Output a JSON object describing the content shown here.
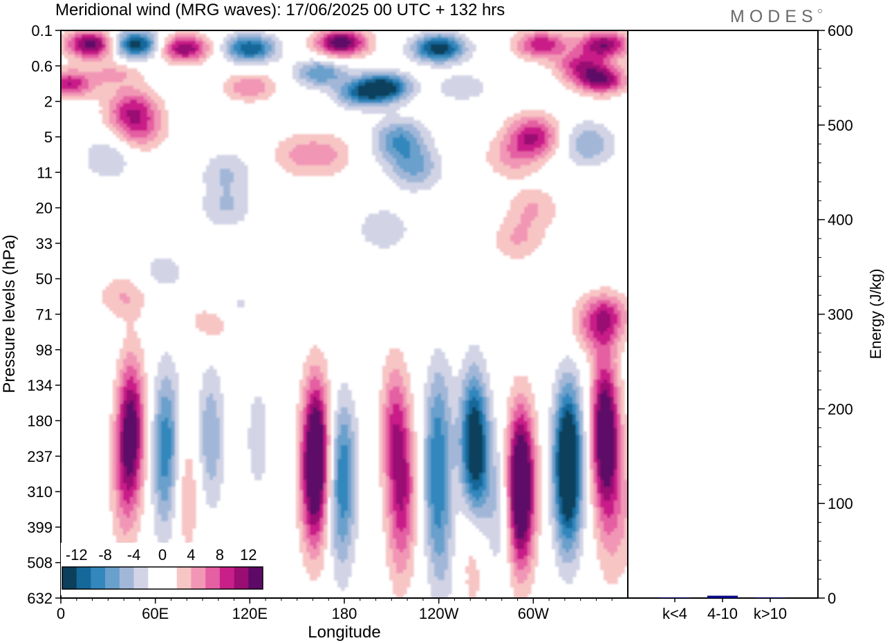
{
  "title": "Meridional wind (MRG waves):  17/06/2025  00 UTC  + 132 hrs",
  "logo": "MODES",
  "chart_data": [
    {
      "type": "heatmap",
      "xlabel": "Longitude",
      "ylabel": "Pressure levels (hPa)",
      "x_ticks": [
        "0",
        "60E",
        "120E",
        "180",
        "120W",
        "60W"
      ],
      "x_tick_values": [
        0,
        60,
        120,
        180,
        240,
        300
      ],
      "xlim": [
        0,
        360
      ],
      "y_ticks": [
        "0.1",
        "0.6",
        "2",
        "5",
        "11",
        "20",
        "33",
        "50",
        "71",
        "98",
        "134",
        "180",
        "237",
        "310",
        "399",
        "508",
        "632"
      ],
      "y_scale": "level-index",
      "colorbar": {
        "labels": [
          "-12",
          "-8",
          "-4",
          "0",
          "4",
          "8",
          "12"
        ],
        "label_values": [
          -12,
          -8,
          -4,
          0,
          4,
          8,
          12
        ],
        "bounds": [
          -14,
          14
        ],
        "colors": [
          "#0b3f5c",
          "#15689a",
          "#3387bd",
          "#6aa0cc",
          "#a2b7d8",
          "#d2d4e6",
          "#ffffff",
          "#ffffff",
          "#f8c5c5",
          "#f197b5",
          "#e55fa3",
          "#c91f88",
          "#9a0d73",
          "#5d0a67"
        ]
      },
      "features": [
        {
          "lon": 20,
          "lev": 0.4,
          "value": 14
        },
        {
          "lon": 47,
          "lev": 0.4,
          "value": -14
        },
        {
          "lon": 78,
          "lev": 0.5,
          "value": 12
        },
        {
          "lon": 120,
          "lev": 0.5,
          "value": -12
        },
        {
          "lon": 178,
          "lev": 0.35,
          "value": 14
        },
        {
          "lon": 240,
          "lev": 0.5,
          "value": -14
        },
        {
          "lon": 305,
          "lev": 0.4,
          "value": 10
        },
        {
          "lon": 345,
          "lev": 0.4,
          "value": 12
        },
        {
          "lon": 343,
          "lev": 1.4,
          "value": 12
        },
        {
          "lon": 5,
          "lev": 1.5,
          "value": 10
        },
        {
          "lon": 35,
          "lev": 1.2,
          "value": 4
        },
        {
          "lon": 165,
          "lev": 1.2,
          "value": -8
        },
        {
          "lon": 205,
          "lev": 1.6,
          "value": -14
        },
        {
          "lon": 190,
          "lev": 1.8,
          "value": -8
        },
        {
          "lon": 255,
          "lev": 1.6,
          "value": -4
        },
        {
          "lon": 120,
          "lev": 1.6,
          "value": 6
        },
        {
          "lon": 330,
          "lev": 1.0,
          "value": 8
        },
        {
          "lon": 45,
          "lev": 2.2,
          "value": 8
        },
        {
          "lon": 50,
          "lev": 2.8,
          "value": 6
        },
        {
          "lon": 215,
          "lev": 3.1,
          "value": -8
        },
        {
          "lon": 225,
          "lev": 3.9,
          "value": -6
        },
        {
          "lon": 300,
          "lev": 3.0,
          "value": 10
        },
        {
          "lon": 285,
          "lev": 3.6,
          "value": 4
        },
        {
          "lon": 335,
          "lev": 3.2,
          "value": -6
        },
        {
          "lon": 150,
          "lev": 3.5,
          "value": 4
        },
        {
          "lon": 170,
          "lev": 3.5,
          "value": 4
        },
        {
          "lon": 105,
          "lev": 4.0,
          "value": -4
        },
        {
          "lon": 30,
          "lev": 3.6,
          "value": -4
        },
        {
          "lon": 105,
          "lev": 5.0,
          "value": -4
        },
        {
          "lon": 300,
          "lev": 5.0,
          "value": 4
        },
        {
          "lon": 205,
          "lev": 5.6,
          "value": -4
        },
        {
          "lon": 65,
          "lev": 6.8,
          "value": -3
        },
        {
          "lon": 40,
          "lev": 7.5,
          "value": 4
        },
        {
          "lon": 290,
          "lev": 5.9,
          "value": 4
        },
        {
          "lon": 97,
          "lev": 8.2,
          "value": 4
        },
        {
          "lon": 110,
          "lev": 7.8,
          "value": -3
        },
        {
          "lon": 345,
          "lev": 8.0,
          "value": 8
        },
        {
          "lon": 340,
          "lev": 8.6,
          "value": 4
        },
        {
          "lon": 45,
          "lev": 11.0,
          "value": 8
        },
        {
          "lon": 44,
          "lev": 11.6,
          "value": 6
        },
        {
          "lon": 40,
          "lev": 13.0,
          "value": 4
        },
        {
          "lon": 67,
          "lev": 11.3,
          "value": -7
        },
        {
          "lon": 66,
          "lev": 12.8,
          "value": -4
        },
        {
          "lon": 95,
          "lev": 11.5,
          "value": -6
        },
        {
          "lon": 125,
          "lev": 11.5,
          "value": -3
        },
        {
          "lon": 80,
          "lev": 13.0,
          "value": 4
        },
        {
          "lon": 162,
          "lev": 11.5,
          "value": 12
        },
        {
          "lon": 161,
          "lev": 13.0,
          "value": 10
        },
        {
          "lon": 179,
          "lev": 12.2,
          "value": -8
        },
        {
          "lon": 178,
          "lev": 14.0,
          "value": -4
        },
        {
          "lon": 212,
          "lev": 11.2,
          "value": 8
        },
        {
          "lon": 218,
          "lev": 12.8,
          "value": 6
        },
        {
          "lon": 215,
          "lev": 14.2,
          "value": 4
        },
        {
          "lon": 240,
          "lev": 11.0,
          "value": -6
        },
        {
          "lon": 238,
          "lev": 12.9,
          "value": -6
        },
        {
          "lon": 242,
          "lev": 14.6,
          "value": -4
        },
        {
          "lon": 262,
          "lev": 11.5,
          "value": -12
        },
        {
          "lon": 265,
          "lev": 12.5,
          "value": -6
        },
        {
          "lon": 292,
          "lev": 12.4,
          "value": 14
        },
        {
          "lon": 292,
          "lev": 13.8,
          "value": 8
        },
        {
          "lon": 322,
          "lev": 11.8,
          "value": -14
        },
        {
          "lon": 322,
          "lev": 13.2,
          "value": -8
        },
        {
          "lon": 346,
          "lev": 11.7,
          "value": 12
        },
        {
          "lon": 345,
          "lev": 10.6,
          "value": 6
        },
        {
          "lon": 262,
          "lev": 14.5,
          "value": 4
        },
        {
          "lon": 279,
          "lev": 13.5,
          "value": -4
        },
        {
          "lon": 358,
          "lev": 13.5,
          "value": 3
        },
        {
          "lon": 348,
          "lev": 14.0,
          "value": 3
        }
      ]
    },
    {
      "type": "bar",
      "categories": [
        "k<4",
        "4-10",
        "k>10"
      ],
      "values": [
        0.5,
        2.5,
        0.5
      ],
      "ylabel": "Energy (J/kg)",
      "ylim": [
        0,
        600
      ],
      "y_ticks": [
        "0",
        "100",
        "200",
        "300",
        "400",
        "500",
        "600"
      ],
      "bar_color": "#0a0a8a"
    }
  ]
}
